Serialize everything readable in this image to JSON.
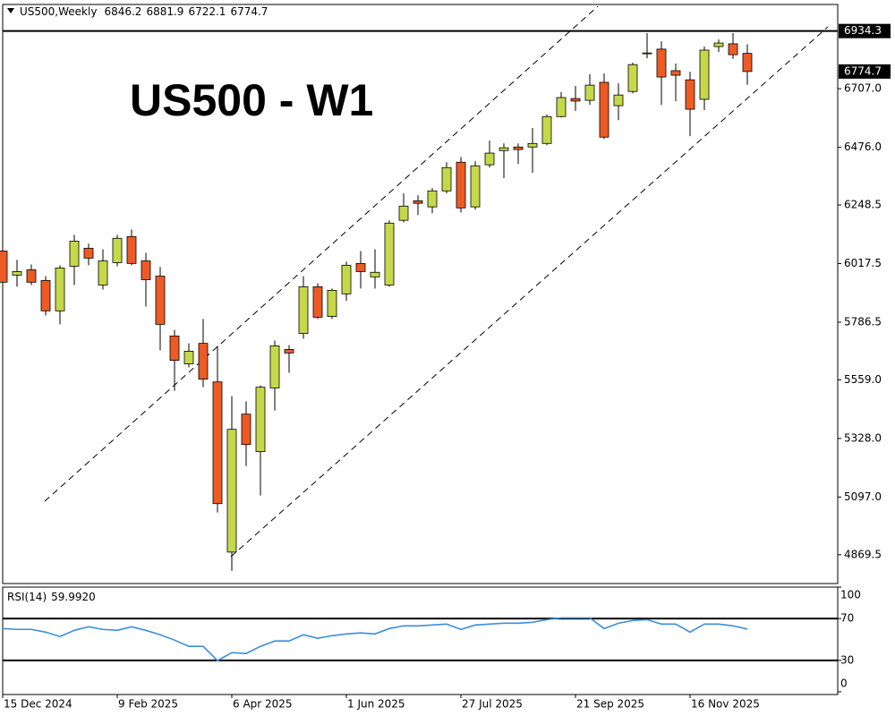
{
  "chart_data": {
    "type": "candlestick",
    "symbol": "US500,Weekly",
    "title": "US500 - W1",
    "categories": [
      "15 Dec 2024",
      null,
      null,
      null,
      null,
      null,
      null,
      null,
      "9 Feb 2025",
      null,
      null,
      null,
      null,
      null,
      null,
      null,
      "6 Apr 2025",
      null,
      null,
      null,
      null,
      null,
      null,
      null,
      "1 Jun 2025",
      null,
      null,
      null,
      null,
      null,
      null,
      null,
      "27 Jul 2025",
      null,
      null,
      null,
      null,
      null,
      null,
      null,
      "21 Sep 2025",
      null,
      null,
      null,
      null,
      null,
      null,
      null,
      "16 Nov 2025",
      null,
      null,
      null,
      null
    ],
    "open": [
      6067,
      5972,
      5993,
      5951,
      5831,
      6007,
      6078,
      5933,
      6021,
      6124,
      6028,
      5968,
      5732,
      5622,
      5703,
      5551,
      4880,
      5424,
      5276,
      5527,
      5679,
      5742,
      5926,
      5809,
      5898,
      6018,
      5965,
      5933,
      6188,
      6265,
      6241,
      6304,
      6417,
      6241,
      6407,
      6463,
      6477,
      6477,
      6491,
      6597,
      6668,
      6661,
      6732,
      6640,
      6696,
      6845,
      6863,
      6778,
      6742,
      6665,
      6873,
      6884,
      6846.2
    ],
    "high": [
      6110,
      6032,
      6014,
      5968,
      6011,
      6131,
      6096,
      6074,
      6131,
      6152,
      6060,
      6004,
      5756,
      5703,
      5799,
      5693,
      5495,
      5474,
      5537,
      5714,
      5696,
      5968,
      5940,
      5919,
      6025,
      6067,
      6074,
      6188,
      6294,
      6287,
      6315,
      6417,
      6438,
      6421,
      6502,
      6491,
      6491,
      6552,
      6605,
      6693,
      6718,
      6764,
      6767,
      6728,
      6810,
      6926,
      6894,
      6806,
      6774,
      6873,
      6901,
      6926,
      6881.9
    ],
    "low": [
      5820,
      5926,
      5933,
      5813,
      5778,
      5933,
      6011,
      5915,
      6007,
      6011,
      5848,
      5675,
      5516,
      5608,
      5530,
      5036,
      4806,
      5219,
      5103,
      5438,
      5587,
      5721,
      5799,
      5799,
      5870,
      5919,
      5919,
      5926,
      6180,
      6209,
      6216,
      6294,
      6219,
      6230,
      6396,
      6354,
      6410,
      6375,
      6484,
      6594,
      6619,
      6643,
      6509,
      6583,
      6689,
      6827,
      6643,
      6658,
      6520,
      6622,
      6852,
      6824,
      6722.1
    ],
    "close": [
      5944,
      5986,
      5944,
      5831,
      6000,
      6106,
      6039,
      6028,
      6117,
      6018,
      5954,
      5778,
      5636,
      5672,
      5562,
      5071,
      5364,
      5304,
      5530,
      5693,
      5665,
      5926,
      5806,
      5912,
      6011,
      5986,
      5983,
      6177,
      6244,
      6255,
      6304,
      6396,
      6237,
      6403,
      6453,
      6474,
      6467,
      6491,
      6597,
      6672,
      6658,
      6721,
      6516,
      6682,
      6802,
      6848,
      6753,
      6760,
      6626,
      6859,
      6887,
      6841,
      6774.7
    ],
    "up_color": "#c5d84a",
    "down_color": "#ee5a24",
    "ylim": [
      4756,
      7039
    ],
    "yticks": [
      {
        "value": 6707.0,
        "label": "6707.0"
      },
      {
        "value": 6476.0,
        "label": "6476.0"
      },
      6248.5,
      6017.5,
      5786.5,
      {
        "value": 5559.0,
        "label": "5559.0"
      },
      {
        "value": 5328.0,
        "label": "5328.0"
      },
      {
        "value": 5097.0,
        "label": "5097.0"
      },
      4869.5
    ],
    "hline": 6934.3,
    "rsi": {
      "type": "line",
      "name": "RSI(14)",
      "value_label": "59.9920",
      "color": "#3a8fd9",
      "values": [
        60.4,
        59.6,
        59.6,
        57,
        52.8,
        58.7,
        62.1,
        59.6,
        58.7,
        62.1,
        58.7,
        54.5,
        49.4,
        43.4,
        43.4,
        29.8,
        37.4,
        36.6,
        43.4,
        48.5,
        48.5,
        54.5,
        51.1,
        53.6,
        55.3,
        56.2,
        55.3,
        60.4,
        63,
        63,
        63.8,
        64.7,
        59.6,
        63.8,
        64.7,
        65.5,
        65.5,
        66.4,
        68.9,
        70.6,
        70.6,
        70.6,
        60.4,
        65.5,
        68.1,
        68.9,
        64.7,
        64.7,
        57,
        64.7,
        64.7,
        63,
        59.992
      ],
      "ylim": [
        -2.6,
        100
      ],
      "yticks": [
        100,
        70,
        30,
        0
      ],
      "levels": [
        70,
        30
      ]
    }
  }
}
